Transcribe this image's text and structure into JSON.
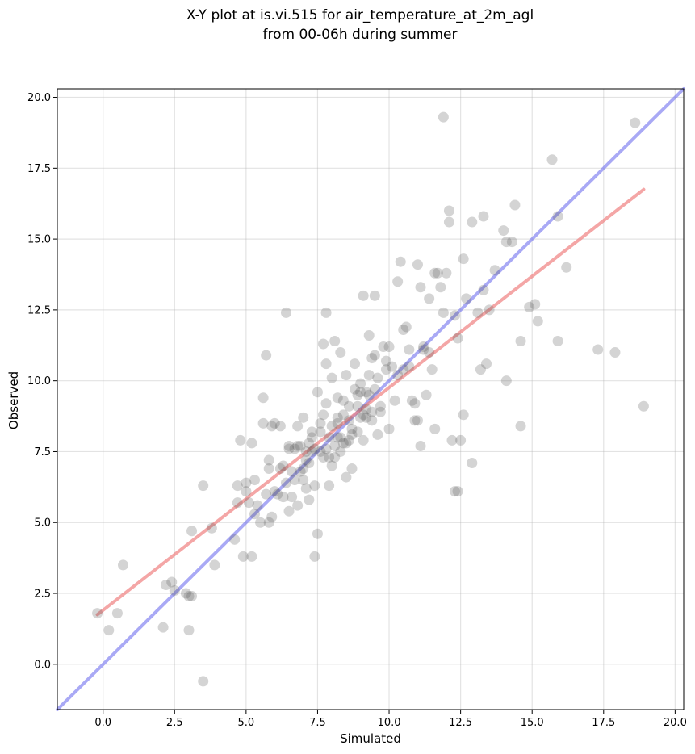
{
  "chart_data": {
    "type": "scatter",
    "title_line1": "X-Y plot at is.vi.515 for air_temperature_at_2m_agl",
    "title_line2": "from 00-06h during summer",
    "xlabel": "Simulated",
    "ylabel": "Observed",
    "xlim": [
      -1.6,
      20.3
    ],
    "ylim": [
      -1.6,
      20.3
    ],
    "x_ticks": [
      0.0,
      2.5,
      5.0,
      7.5,
      10.0,
      12.5,
      15.0,
      17.5,
      20.0
    ],
    "x_tick_labels": [
      "0.0",
      "2.5",
      "5.0",
      "7.5",
      "10.0",
      "12.5",
      "15.0",
      "17.5",
      "20.0"
    ],
    "y_ticks": [
      0.0,
      2.5,
      5.0,
      7.5,
      10.0,
      12.5,
      15.0,
      17.5,
      20.0
    ],
    "y_tick_labels": [
      "0.0",
      "2.5",
      "5.0",
      "7.5",
      "10.0",
      "12.5",
      "15.0",
      "17.5",
      "20.0"
    ],
    "grid": true,
    "colors": {
      "points": "#555555",
      "regression_line": "#f08080",
      "identity_line": "#7b7bf0"
    },
    "regression_line": {
      "x": [
        -0.2,
        18.9
      ],
      "y": [
        1.75,
        16.75
      ]
    },
    "identity_line": {
      "x": [
        -1.6,
        20.3
      ],
      "y": [
        -1.6,
        20.3
      ]
    },
    "points": {
      "x": [
        -0.2,
        0.2,
        0.5,
        0.7,
        2.1,
        2.2,
        2.4,
        2.5,
        2.9,
        3.0,
        3.0,
        3.1,
        3.1,
        3.5,
        3.5,
        3.8,
        3.9,
        4.6,
        4.7,
        4.7,
        4.8,
        4.9,
        5.0,
        5.1,
        5.2,
        5.2,
        5.3,
        5.4,
        5.5,
        5.6,
        5.6,
        5.7,
        5.7,
        5.8,
        5.8,
        5.9,
        5.9,
        6.0,
        6.1,
        6.2,
        6.3,
        6.4,
        6.4,
        6.5,
        6.5,
        6.6,
        6.6,
        6.7,
        6.7,
        6.8,
        6.8,
        6.9,
        6.9,
        7.0,
        7.0,
        7.1,
        7.1,
        7.2,
        7.2,
        7.3,
        7.3,
        7.4,
        7.4,
        7.5,
        7.5,
        7.6,
        7.6,
        7.7,
        7.7,
        7.7,
        7.8,
        7.8,
        7.8,
        7.9,
        7.9,
        8.0,
        8.0,
        8.0,
        8.1,
        8.1,
        8.2,
        8.2,
        8.3,
        8.3,
        8.3,
        8.4,
        8.4,
        8.5,
        8.5,
        8.5,
        8.6,
        8.6,
        8.7,
        8.7,
        8.8,
        8.8,
        8.9,
        8.9,
        9.0,
        9.0,
        9.1,
        9.1,
        9.2,
        9.2,
        9.3,
        9.3,
        9.4,
        9.4,
        9.5,
        9.5,
        9.6,
        9.7,
        9.8,
        9.9,
        10.0,
        10.0,
        10.2,
        10.3,
        10.4,
        10.5,
        10.6,
        10.7,
        10.8,
        10.9,
        11.0,
        11.1,
        11.1,
        11.2,
        11.3,
        11.4,
        11.5,
        11.6,
        11.7,
        11.8,
        11.9,
        12.0,
        12.1,
        12.1,
        12.2,
        12.3,
        12.4,
        12.5,
        12.6,
        12.6,
        12.7,
        12.9,
        12.9,
        13.1,
        13.2,
        13.3,
        13.3,
        13.4,
        13.5,
        13.7,
        14.0,
        14.1,
        14.1,
        14.3,
        14.4,
        14.6,
        14.6,
        14.9,
        15.1,
        15.2,
        15.7,
        15.9,
        15.9,
        16.2,
        17.3,
        17.9,
        18.6,
        18.9,
        6.5,
        7.8,
        8.2,
        9.0,
        9.4,
        9.6,
        11.2,
        11.9,
        12.4,
        5.0,
        5.3,
        5.8,
        6.0,
        6.2,
        6.3,
        6.8,
        7.0,
        7.1,
        7.2,
        7.3,
        7.4,
        7.6,
        7.9,
        8.1,
        8.2,
        8.4,
        8.6,
        8.7,
        8.9,
        9.1,
        9.2,
        9.3,
        9.5,
        9.7,
        9.9,
        10.1,
        10.3,
        10.5,
        10.7,
        10.9,
        11.0,
        11.4,
        11.6,
        12.3
      ],
      "y": [
        1.8,
        1.2,
        1.8,
        3.5,
        1.3,
        2.8,
        2.9,
        2.6,
        2.5,
        1.2,
        2.4,
        2.4,
        4.7,
        -0.6,
        6.3,
        4.8,
        3.5,
        4.4,
        5.7,
        6.3,
        7.9,
        3.8,
        6.1,
        5.7,
        7.8,
        3.8,
        5.3,
        5.6,
        5.0,
        8.5,
        9.4,
        6.0,
        10.9,
        6.9,
        5.0,
        5.2,
        8.4,
        8.5,
        6.0,
        6.9,
        5.9,
        6.4,
        12.4,
        5.4,
        7.6,
        6.8,
        5.9,
        6.5,
        7.6,
        5.6,
        8.4,
        6.8,
        7.7,
        6.5,
        8.7,
        7.5,
        6.2,
        7.8,
        5.8,
        7.5,
        8.0,
        3.8,
        6.3,
        4.6,
        9.6,
        8.2,
        7.5,
        11.3,
        7.3,
        8.8,
        12.4,
        9.2,
        7.6,
        7.3,
        6.3,
        10.1,
        8.4,
        7.0,
        11.4,
        7.7,
        8.7,
        9.4,
        11.0,
        8.0,
        7.5,
        9.3,
        8.8,
        10.2,
        7.8,
        6.6,
        9.1,
        7.9,
        6.9,
        8.3,
        9.7,
        10.6,
        9.5,
        8.2,
        8.7,
        9.9,
        13.0,
        7.9,
        9.0,
        8.7,
        10.2,
        11.6,
        10.8,
        8.6,
        9.7,
        13.0,
        10.1,
        8.9,
        11.2,
        10.4,
        11.2,
        8.3,
        9.3,
        13.5,
        14.2,
        10.4,
        11.9,
        11.1,
        9.3,
        8.6,
        14.1,
        13.3,
        7.7,
        11.2,
        9.5,
        12.9,
        10.4,
        13.8,
        13.8,
        13.3,
        19.3,
        13.8,
        16.0,
        15.6,
        7.9,
        6.1,
        11.5,
        7.9,
        14.3,
        8.8,
        12.9,
        15.6,
        7.1,
        12.4,
        10.4,
        15.8,
        13.2,
        10.6,
        12.5,
        13.9,
        15.3,
        10.0,
        14.9,
        14.9,
        16.2,
        8.4,
        11.4,
        12.6,
        12.7,
        12.1,
        17.8,
        11.4,
        15.8,
        14.0,
        11.1,
        11.0,
        19.1,
        9.1,
        7.7,
        10.6,
        8.5,
        9.6,
        8.9,
        8.1,
        11.1,
        12.4,
        6.1,
        6.4,
        6.5,
        7.2,
        6.1,
        8.4,
        7.0,
        7.7,
        6.9,
        7.2,
        7.1,
        8.2,
        7.6,
        8.5,
        8.0,
        7.3,
        8.0,
        7.8,
        8.6,
        8.1,
        9.1,
        8.8,
        9.6,
        9.5,
        10.9,
        9.1,
        10.7,
        10.5,
        10.2,
        11.8,
        10.5,
        9.2,
        8.6,
        11.0,
        8.3,
        12.3
      ]
    }
  }
}
